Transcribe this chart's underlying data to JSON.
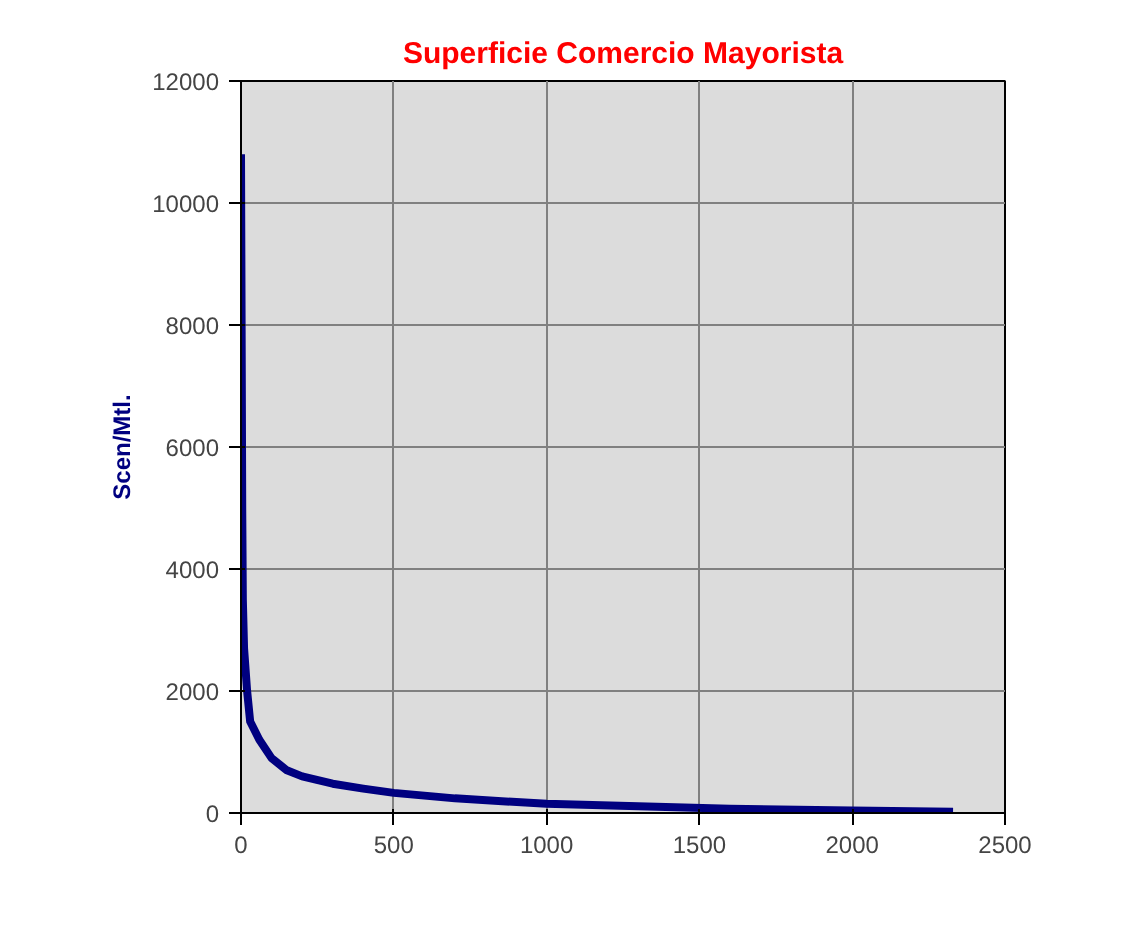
{
  "chart_data": {
    "type": "line",
    "title": "Superficie Comercio Mayorista",
    "ylabel": "Scen/Mtl.",
    "series": [
      {
        "color": "#000080",
        "x": [
          0,
          2,
          4,
          6,
          10,
          20,
          30,
          60,
          100,
          150,
          200,
          300,
          400,
          500,
          700,
          1000,
          1300,
          1600,
          2000,
          2330
        ],
        "values": [
          10800,
          8000,
          5000,
          3500,
          2700,
          2000,
          1500,
          1200,
          900,
          700,
          600,
          480,
          400,
          330,
          240,
          150,
          110,
          70,
          40,
          20
        ]
      }
    ],
    "xlim": [
      0,
      2500
    ],
    "xticks": [
      0,
      500,
      1000,
      1500,
      2000,
      2500
    ],
    "ylim": [
      0,
      12000
    ],
    "yticks": [
      0,
      2000,
      4000,
      6000,
      8000,
      10000,
      12000
    ],
    "grid": true,
    "marker": "none",
    "line_style": "solid"
  }
}
